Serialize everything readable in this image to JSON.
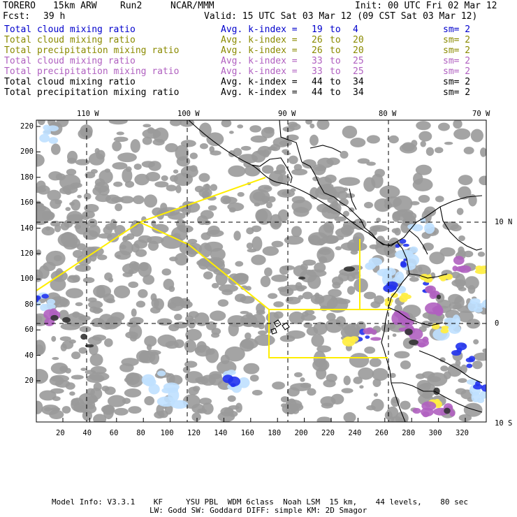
{
  "header": {
    "model": "TORERO",
    "resolution": "15km ARW",
    "run": "Run2",
    "org": "NCAR/MMM",
    "init": "Init: 00 UTC Fri 02 Mar 12",
    "fcst_label": "Fcst:",
    "fcst_value": "39 h",
    "valid": "Valid: 15 UTC Sat 03 Mar 12 (09 CST Sat 03 Mar 12)"
  },
  "legend": [
    {
      "field": "Total cloud mixing ratio",
      "avg": "Avg. k-index =",
      "k1": "19",
      "to": "to",
      "k2": "4",
      "sm": "sm= 2",
      "color": "#0000cc"
    },
    {
      "field": "Total cloud mixing ratio",
      "avg": "Avg. k-index =",
      "k1": "26",
      "to": "to",
      "k2": "20",
      "sm": "sm= 2",
      "color": "#8a8a00"
    },
    {
      "field": "Total precipitation mixing ratio",
      "avg": "Avg. k-index =",
      "k1": "26",
      "to": "to",
      "k2": "20",
      "sm": "sm= 2",
      "color": "#8a8a00"
    },
    {
      "field": "Total cloud mixing ratio",
      "avg": "Avg. k-index =",
      "k1": "33",
      "to": "to",
      "k2": "25",
      "sm": "sm= 2",
      "color": "#b060c0"
    },
    {
      "field": "Total precipitation mixing ratio",
      "avg": "Avg. k-index =",
      "k1": "33",
      "to": "to",
      "k2": "25",
      "sm": "sm= 2",
      "color": "#b060c0"
    },
    {
      "field": "Total cloud mixing ratio",
      "avg": "Avg. k-index =",
      "k1": "44",
      "to": "to",
      "k2": "34",
      "sm": "sm= 2",
      "color": "#000000"
    },
    {
      "field": "Total precipitation mixing ratio",
      "avg": "Avg. k-index =",
      "k1": "44",
      "to": "to",
      "k2": "34",
      "sm": "sm= 2",
      "color": "#000000"
    }
  ],
  "map": {
    "top_lon_labels": [
      "110 W",
      "100 W",
      "90 W",
      "80 W",
      "70 W"
    ],
    "right_lat_labels": [
      "10 N",
      "0",
      "10 S"
    ],
    "y_grid_labels": [
      "220",
      "200",
      "180",
      "160",
      "140",
      "120",
      "100",
      "80",
      "60",
      "40",
      "20"
    ],
    "x_grid_labels": [
      "20",
      "40",
      "60",
      "80",
      "100",
      "120",
      "140",
      "160",
      "180",
      "200",
      "220",
      "240",
      "260",
      "280",
      "300",
      "320"
    ],
    "colors": {
      "cloud_gray": "#9a9a9a",
      "dark": "#333333",
      "blue": "#2233ee",
      "light_blue": "#bfe0ff",
      "purple": "#b060c0",
      "yellow": "#ffee44",
      "outline": "#ffee00"
    }
  },
  "footer": {
    "line1": "Model Info: V3.3.1    KF     YSU PBL  WDM 6class  Noah LSM  15 km,    44 levels,    80 sec",
    "line2": "LW: Godd SW: Goddard DIFF: simple KM: 2D Smagor"
  }
}
